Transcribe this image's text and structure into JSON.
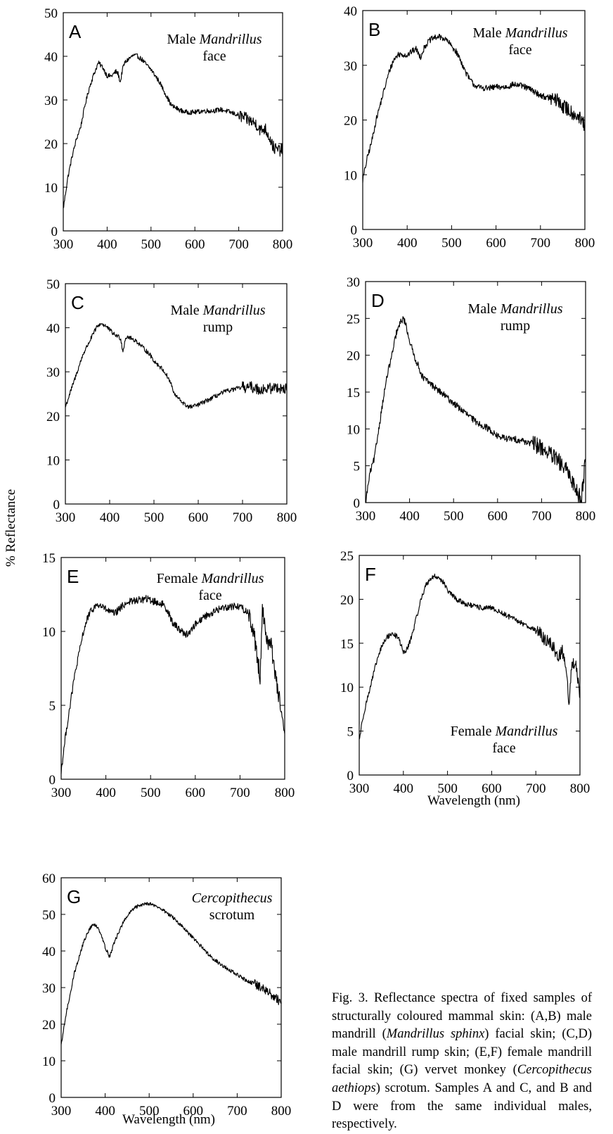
{
  "chart_data": [
    {
      "panel": "A",
      "type": "line",
      "label_lines": [
        [
          "Male ",
          {
            "i": "Mandrillus"
          }
        ],
        [
          "face"
        ]
      ],
      "xlim": [
        300,
        800
      ],
      "ylim": [
        0,
        50
      ],
      "xticks": [
        300,
        400,
        500,
        600,
        700,
        800
      ],
      "yticks": [
        0,
        10,
        20,
        30,
        40,
        50
      ],
      "noise": 0.55,
      "noise_from": 700,
      "series": [
        {
          "x": [
            300,
            310,
            320,
            330,
            340,
            350,
            360,
            370,
            380,
            390,
            400,
            410,
            420,
            425,
            430,
            435,
            440,
            450,
            460,
            470,
            480,
            490,
            500,
            510,
            520,
            530,
            540,
            545,
            550,
            560,
            570,
            580,
            600,
            620,
            640,
            660,
            680,
            700,
            720,
            740,
            750,
            760,
            770,
            780,
            790,
            800
          ],
          "y": [
            5,
            12,
            17,
            21,
            24,
            29,
            33,
            36,
            38.5,
            37.5,
            35.5,
            35.5,
            36.5,
            36,
            34,
            37,
            38.5,
            39.5,
            40.2,
            40,
            39.2,
            38,
            37,
            35.5,
            34,
            32,
            30,
            29,
            28.5,
            28,
            27.5,
            27.2,
            27.2,
            27.5,
            27.5,
            27.8,
            27.2,
            26.5,
            25.5,
            24.5,
            23,
            23.5,
            21.5,
            19,
            18.5,
            18.5
          ]
        }
      ]
    },
    {
      "panel": "B",
      "type": "line",
      "label_lines": [
        [
          "Male ",
          {
            "i": "Mandrillus"
          }
        ],
        [
          "face"
        ]
      ],
      "xlim": [
        300,
        800
      ],
      "ylim": [
        0,
        40
      ],
      "xticks": [
        300,
        400,
        500,
        600,
        700,
        800
      ],
      "yticks": [
        0,
        10,
        20,
        30,
        40
      ],
      "noise": 0.55,
      "noise_from": 720,
      "series": [
        {
          "x": [
            300,
            310,
            320,
            330,
            340,
            350,
            360,
            370,
            380,
            390,
            400,
            410,
            420,
            430,
            435,
            440,
            450,
            460,
            470,
            480,
            490,
            500,
            510,
            520,
            530,
            540,
            550,
            560,
            580,
            600,
            620,
            640,
            660,
            680,
            700,
            720,
            740,
            750,
            760,
            780,
            790,
            800
          ],
          "y": [
            9,
            13,
            16,
            20,
            23,
            26,
            29,
            31,
            32,
            32,
            31.8,
            32.5,
            33,
            31.5,
            32.5,
            33.5,
            34.5,
            35,
            35.2,
            35,
            34.5,
            33.5,
            32.5,
            31,
            29,
            27.5,
            26.5,
            26,
            25.8,
            26,
            26,
            26.5,
            26.2,
            25.5,
            24.5,
            24,
            23.5,
            22.5,
            22,
            21,
            20,
            19
          ]
        }
      ]
    },
    {
      "panel": "C",
      "type": "line",
      "label_lines": [
        [
          "Male ",
          {
            "i": "Mandrillus"
          }
        ],
        [
          "rump"
        ]
      ],
      "xlim": [
        300,
        800
      ],
      "ylim": [
        0,
        50
      ],
      "xticks": [
        300,
        400,
        500,
        600,
        700,
        800
      ],
      "yticks": [
        0,
        10,
        20,
        30,
        40,
        50
      ],
      "noise": 0.5,
      "noise_from": 700,
      "series": [
        {
          "x": [
            300,
            310,
            320,
            330,
            340,
            350,
            360,
            370,
            380,
            390,
            400,
            410,
            420,
            425,
            430,
            435,
            440,
            450,
            460,
            470,
            480,
            490,
            500,
            510,
            520,
            530,
            540,
            545,
            550,
            560,
            570,
            580,
            590,
            600,
            620,
            640,
            660,
            680,
            700,
            720,
            740,
            760,
            780,
            800
          ],
          "y": [
            22,
            25,
            28,
            31,
            34,
            36,
            38,
            40,
            41,
            40.5,
            39.5,
            38.5,
            38,
            37.5,
            34.5,
            37.5,
            38,
            37.5,
            37,
            36,
            35,
            34,
            32.5,
            31.5,
            30.5,
            29,
            27,
            25,
            24.5,
            23.5,
            22.5,
            22,
            22.2,
            22.5,
            23.5,
            24.5,
            25.5,
            26,
            26.5,
            26.5,
            26,
            26.2,
            26.5,
            26
          ]
        }
      ]
    },
    {
      "panel": "D",
      "type": "line",
      "label_lines": [
        [
          "Male ",
          {
            "i": "Mandrillus"
          }
        ],
        [
          "rump"
        ]
      ],
      "xlim": [
        300,
        800
      ],
      "ylim": [
        0,
        30
      ],
      "xticks": [
        300,
        400,
        500,
        600,
        700,
        800
      ],
      "yticks": [
        0,
        5,
        10,
        15,
        20,
        25,
        30
      ],
      "noise": 0.45,
      "noise_from": 680,
      "series": [
        {
          "x": [
            300,
            305,
            310,
            315,
            320,
            330,
            340,
            350,
            360,
            370,
            380,
            385,
            390,
            400,
            410,
            420,
            430,
            450,
            470,
            500,
            520,
            550,
            580,
            600,
            620,
            650,
            680,
            700,
            720,
            740,
            760,
            770,
            780,
            790,
            800
          ],
          "y": [
            0,
            2,
            4,
            5,
            6,
            10,
            14,
            17.5,
            20,
            23,
            24.5,
            25,
            24.5,
            22,
            20,
            18.5,
            17,
            16,
            15,
            13.5,
            12.5,
            11,
            10,
            9,
            8.7,
            8.5,
            8,
            7.5,
            6.5,
            5.5,
            4,
            3,
            1.5,
            0.5,
            6
          ]
        }
      ]
    },
    {
      "panel": "E",
      "type": "line",
      "label_lines": [
        [
          "Female ",
          {
            "i": "Mandrillus"
          }
        ],
        [
          "face"
        ]
      ],
      "xlim": [
        300,
        800
      ],
      "ylim": [
        0,
        15
      ],
      "xticks": [
        300,
        400,
        500,
        600,
        700,
        800
      ],
      "yticks": [
        0,
        5,
        10,
        15
      ],
      "noise": 0.25,
      "noise_from": 720,
      "series": [
        {
          "x": [
            300,
            310,
            320,
            330,
            340,
            350,
            360,
            370,
            380,
            390,
            400,
            410,
            420,
            430,
            440,
            450,
            470,
            490,
            510,
            530,
            540,
            550,
            560,
            570,
            580,
            590,
            600,
            620,
            640,
            660,
            680,
            700,
            720,
            730,
            740,
            745,
            750,
            755,
            760,
            770,
            780,
            790,
            800
          ],
          "y": [
            0.5,
            3,
            5,
            7,
            8.5,
            10,
            11,
            11.5,
            11.8,
            11.7,
            11.5,
            11.3,
            11.2,
            11.5,
            11.8,
            12,
            12.1,
            12.2,
            12,
            11.8,
            11.3,
            10.5,
            10.3,
            10,
            9.8,
            10,
            10.5,
            11,
            11.3,
            11.6,
            11.7,
            11.7,
            11.2,
            10,
            8,
            7,
            11.5,
            10.5,
            9.5,
            9,
            7,
            5,
            2.5
          ]
        }
      ]
    },
    {
      "panel": "F",
      "type": "line",
      "label_lines": [
        [
          "Female ",
          {
            "i": "Mandrillus"
          }
        ],
        [
          "face"
        ]
      ],
      "label_pos": "bottom-right",
      "xlim": [
        300,
        800
      ],
      "ylim": [
        0,
        25
      ],
      "xticks": [
        300,
        400,
        500,
        600,
        700,
        800
      ],
      "yticks": [
        0,
        5,
        10,
        15,
        20,
        25
      ],
      "noise": 0.3,
      "noise_from": 700,
      "series": [
        {
          "x": [
            300,
            310,
            320,
            330,
            340,
            350,
            360,
            370,
            380,
            390,
            400,
            405,
            410,
            420,
            430,
            440,
            450,
            460,
            470,
            480,
            490,
            500,
            520,
            540,
            560,
            580,
            600,
            620,
            640,
            660,
            680,
            700,
            720,
            740,
            750,
            760,
            770,
            775,
            780,
            790,
            800
          ],
          "y": [
            4,
            7,
            9,
            11,
            13,
            14.5,
            15.5,
            16,
            16,
            15.5,
            14,
            14,
            14.5,
            16,
            18,
            20,
            21.5,
            22.3,
            22.6,
            22.5,
            22,
            21,
            20,
            19.5,
            19.2,
            19,
            19,
            18.5,
            18,
            17.5,
            17,
            16.5,
            15.5,
            14.5,
            13.5,
            14,
            12,
            8,
            12,
            13,
            9
          ]
        }
      ]
    },
    {
      "panel": "G",
      "type": "line",
      "label_lines": [
        [
          {
            "i": "Cercopithecus"
          }
        ],
        [
          "scrotum"
        ]
      ],
      "xlim": [
        300,
        800
      ],
      "ylim": [
        0,
        60
      ],
      "xticks": [
        300,
        400,
        500,
        600,
        700,
        800
      ],
      "yticks": [
        0,
        10,
        20,
        30,
        40,
        50,
        60
      ],
      "noise": 0.5,
      "noise_from": 740,
      "series": [
        {
          "x": [
            300,
            310,
            320,
            330,
            340,
            350,
            360,
            370,
            380,
            390,
            400,
            410,
            420,
            430,
            440,
            450,
            460,
            470,
            480,
            490,
            500,
            510,
            520,
            540,
            560,
            580,
            600,
            620,
            640,
            660,
            680,
            700,
            720,
            740,
            760,
            780,
            800
          ],
          "y": [
            14,
            22,
            28,
            34,
            38,
            42,
            45,
            47,
            47,
            45,
            41,
            38.5,
            42,
            45,
            47.5,
            49.5,
            51,
            52,
            52.5,
            53,
            53,
            52.5,
            52,
            50.5,
            48.5,
            46,
            43.5,
            41,
            38.5,
            36.5,
            35,
            33.5,
            32,
            31,
            29.5,
            28,
            26
          ]
        }
      ]
    }
  ],
  "axis_titles": {
    "y": "% Reflectance",
    "x_F": "Wavelength (nm)",
    "x_G": "Wavelength (nm)"
  },
  "caption": {
    "parts": [
      "Fig. 3. Reflectance spectra of fixed samples of structurally coloured mammal skin: (A,B) male mandrill (",
      {
        "i": "Mandrillus sphinx"
      },
      ") facial skin; (C,D) male mandrill rump skin; (E,F) female mandrill facial skin; (G) vervet monkey (",
      {
        "i": "Cercopithecus aethiops"
      },
      ") scrotum. Samples A and C, and B and D were from the same individual males, respectively."
    ]
  }
}
